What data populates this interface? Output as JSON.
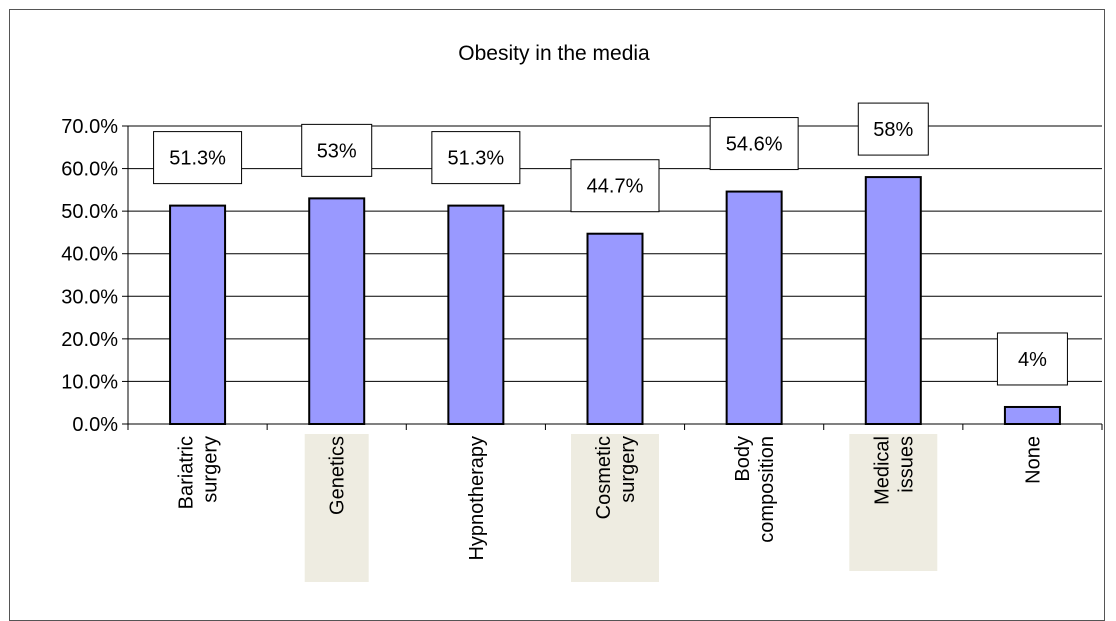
{
  "chart_data": {
    "type": "bar",
    "title": "Obesity in the media",
    "categories": [
      "Bariatric\nsurgery",
      "Genetics",
      "Hypnotherapy",
      "Cosmetic\nsurgery",
      "Body\ncomposition",
      "Medical\nissues",
      "None"
    ],
    "values": [
      51.3,
      53,
      51.3,
      44.7,
      54.6,
      58,
      4
    ],
    "data_labels": [
      "51.3%",
      "53%",
      "51.3%",
      "44.7%",
      "54.6%",
      "58%",
      "4%"
    ],
    "y_ticks": [
      "0.0%",
      "10.0%",
      "20.0%",
      "30.0%",
      "40.0%",
      "50.0%",
      "60.0%",
      "70.0%"
    ],
    "xlabel": "",
    "ylabel": "",
    "ylim": [
      0,
      70
    ],
    "grid": true,
    "legend": "none",
    "colors": {
      "bar_fill": "#9999ff",
      "bar_stroke": "#000000",
      "gridline": "#000000",
      "highlight_band": "#eeece1"
    },
    "highlighted_categories": [
      "Genetics",
      "Cosmetic\nsurgery",
      "Medical\nissues"
    ]
  }
}
